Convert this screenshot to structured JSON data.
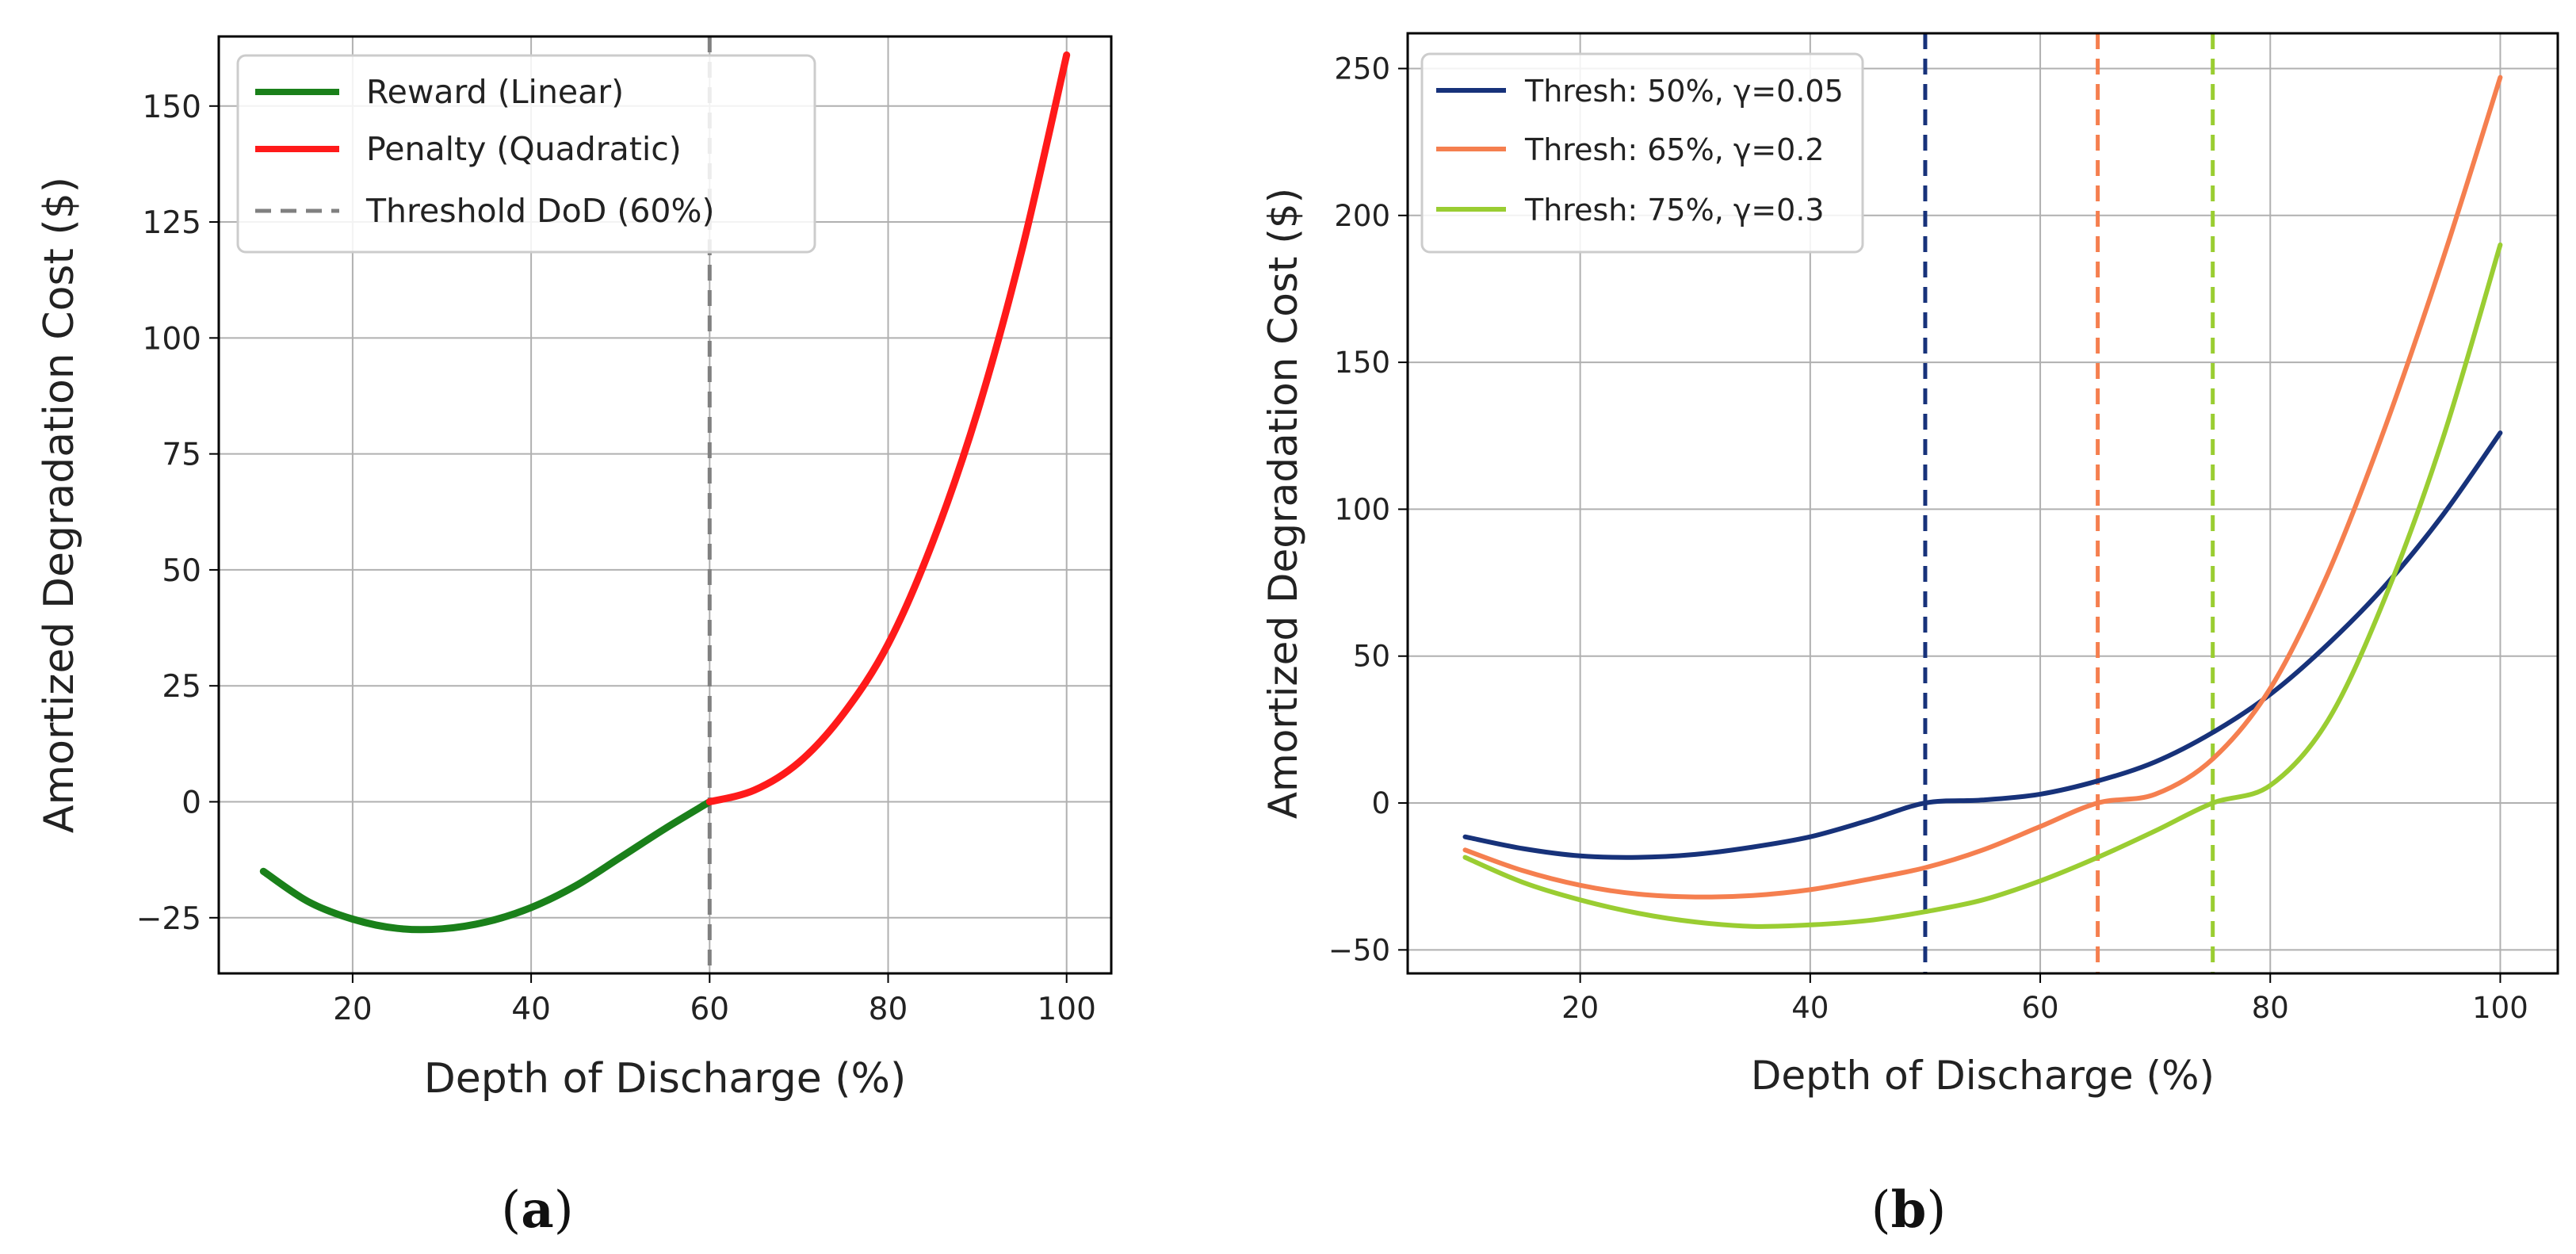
{
  "chart_data": [
    {
      "type": "line",
      "caption": "a",
      "xlabel": "Depth of Discharge (%)",
      "ylabel": "Amortized Degradation Cost ($)",
      "xlim": [
        5,
        105
      ],
      "ylim": [
        -37,
        165
      ],
      "xticks": [
        20,
        40,
        60,
        80,
        100
      ],
      "yticks": [
        -25,
        0,
        25,
        50,
        75,
        100,
        125,
        150
      ],
      "grid": true,
      "legend_position": "top-left",
      "threshold": {
        "label": "Threshold DoD (60%)",
        "x": 60,
        "color": "#808080"
      },
      "series": [
        {
          "name": "Reward (Linear)",
          "color": "#1a801a",
          "x": [
            10,
            15,
            20,
            25,
            30,
            35,
            40,
            45,
            50,
            55,
            60
          ],
          "y": [
            -15,
            -21.5,
            -25.3,
            -27.3,
            -27.4,
            -25.9,
            -22.8,
            -18.1,
            -12.0,
            -5.8,
            0
          ]
        },
        {
          "name": "Penalty (Quadratic)",
          "color": "#ff1a1a",
          "x": [
            60,
            65,
            70,
            75,
            80,
            85,
            90,
            95,
            100
          ],
          "y": [
            0,
            2.5,
            8.5,
            19,
            34,
            56,
            84,
            119,
            161
          ]
        }
      ]
    },
    {
      "type": "line",
      "caption": "b",
      "xlabel": "Depth of Discharge (%)",
      "ylabel": "Amortized Degradation Cost ($)",
      "xlim": [
        5,
        105
      ],
      "ylim": [
        -58,
        262
      ],
      "xticks": [
        20,
        40,
        60,
        80,
        100
      ],
      "yticks": [
        -50,
        0,
        50,
        100,
        150,
        200,
        250
      ],
      "grid": true,
      "legend_position": "top-left",
      "series": [
        {
          "name": "Thresh: 50%, γ=0.05",
          "color": "#17327a",
          "threshold_x": 50,
          "x": [
            10,
            15,
            20,
            25,
            30,
            35,
            40,
            45,
            50,
            55,
            60,
            65,
            70,
            75,
            80,
            85,
            90,
            95,
            100
          ],
          "y": [
            -11.5,
            -15.5,
            -18,
            -18.5,
            -17.5,
            -15,
            -11.5,
            -6,
            0,
            1,
            3,
            7.5,
            14,
            24,
            37,
            54,
            74,
            98,
            126
          ]
        },
        {
          "name": "Thresh: 65%, γ=0.2",
          "color": "#f57f4f",
          "threshold_x": 65,
          "x": [
            10,
            15,
            20,
            25,
            30,
            35,
            40,
            45,
            50,
            55,
            60,
            65,
            70,
            75,
            80,
            85,
            90,
            95,
            100
          ],
          "y": [
            -16,
            -23,
            -28,
            -31,
            -32,
            -31.5,
            -29.5,
            -26,
            -22,
            -16,
            -8,
            0,
            3,
            15,
            39,
            78,
            128,
            185,
            247
          ]
        },
        {
          "name": "Thresh: 75%, γ=0.3",
          "color": "#9acd32",
          "threshold_x": 75,
          "x": [
            10,
            15,
            20,
            25,
            30,
            35,
            40,
            45,
            50,
            55,
            60,
            65,
            70,
            75,
            80,
            85,
            90,
            95,
            100
          ],
          "y": [
            -18.5,
            -27,
            -33,
            -37.5,
            -40.5,
            -42,
            -41.5,
            -40,
            -37,
            -33,
            -26.5,
            -18.5,
            -9.5,
            0,
            6,
            28,
            70,
            124,
            190
          ]
        }
      ]
    }
  ]
}
